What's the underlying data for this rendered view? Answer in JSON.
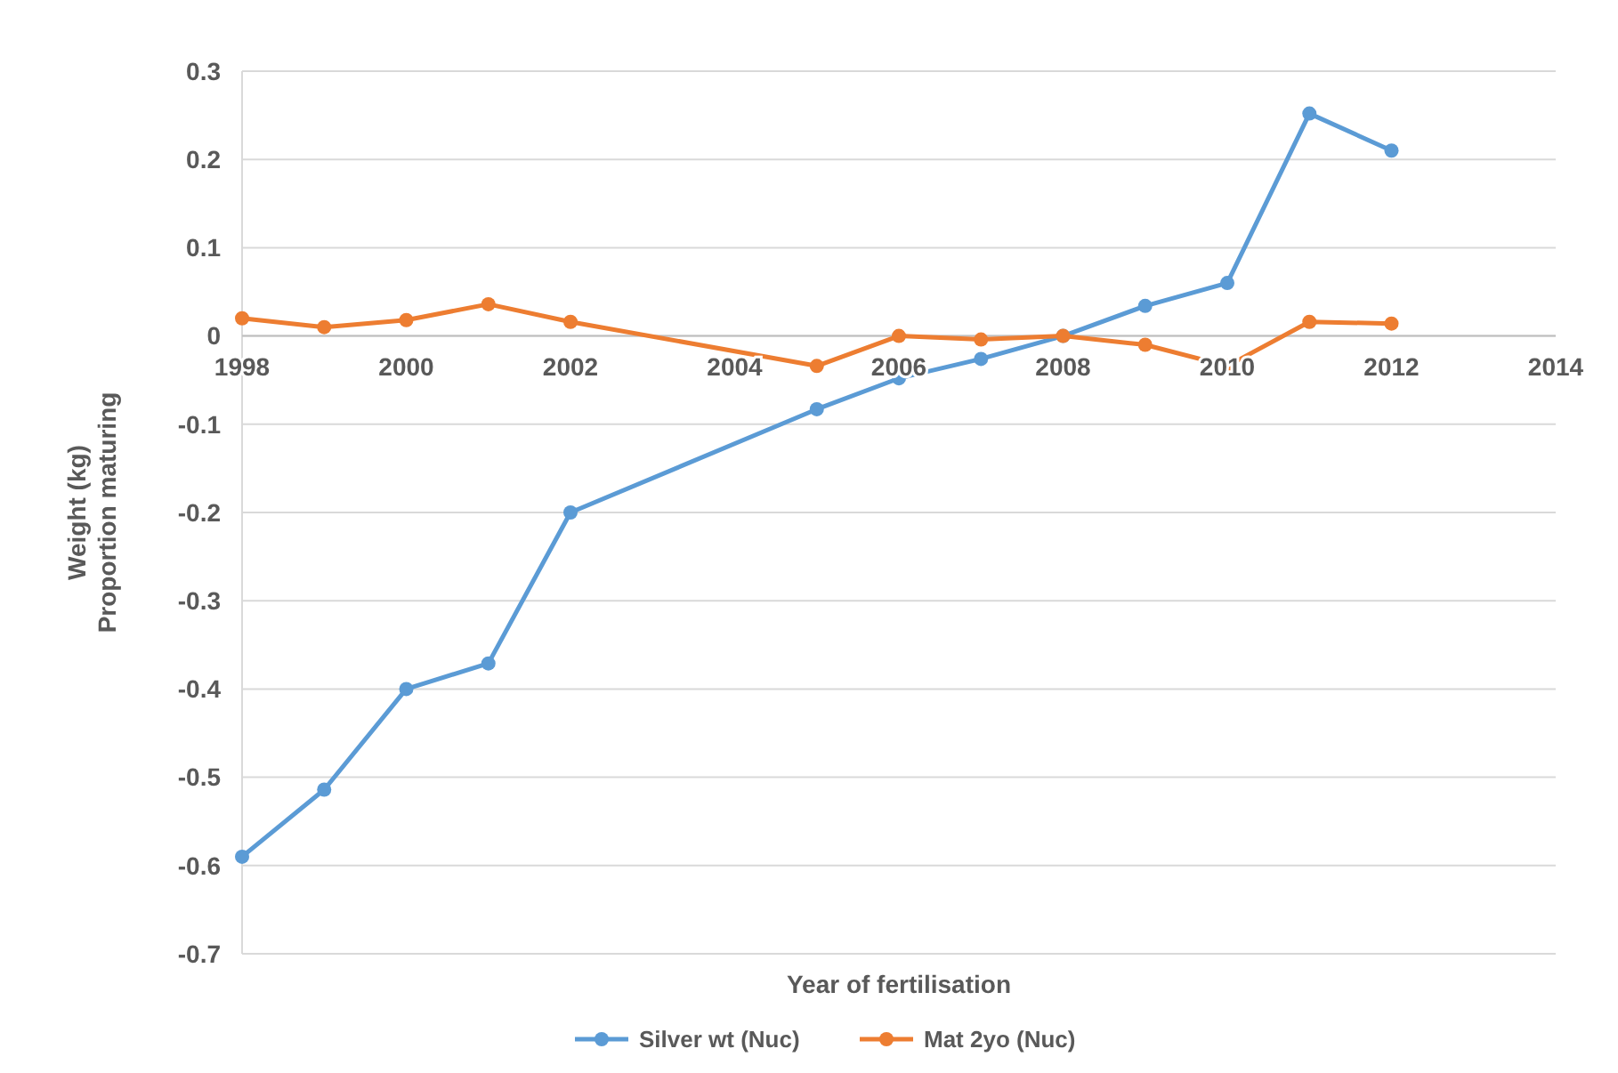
{
  "chart_data": {
    "type": "line",
    "xlabel": "Year of fertilisation",
    "ylabel": "Weight (kg)\nProportion maturing",
    "x": [
      1998,
      1999,
      2000,
      2001,
      2002,
      2005,
      2006,
      2007,
      2008,
      2009,
      2010,
      2011,
      2012
    ],
    "series": [
      {
        "name": "Silver wt (Nuc)",
        "color": "#5b9bd5",
        "values": [
          -0.59,
          -0.514,
          -0.4,
          -0.371,
          -0.2,
          -0.083,
          -0.048,
          -0.026,
          0,
          0.034,
          0.06,
          0.252,
          0.21
        ]
      },
      {
        "name": "Mat 2yo (Nuc)",
        "color": "#ed7d31",
        "values": [
          0.02,
          0.01,
          0.018,
          0.036,
          0.016,
          -0.034,
          0,
          -0.004,
          0,
          -0.01,
          -0.034,
          0.016,
          0.014
        ]
      }
    ],
    "xlim": [
      1998,
      2014
    ],
    "xticks": [
      1998,
      2000,
      2002,
      2004,
      2006,
      2008,
      2010,
      2012,
      2014
    ],
    "ylim": [
      -0.7,
      0.3
    ],
    "yticks": [
      -0.7,
      -0.6,
      -0.5,
      -0.4,
      -0.3,
      -0.2,
      -0.1,
      0,
      0.1,
      0.2,
      0.3
    ],
    "grid": "y",
    "legend": "bottom",
    "marker": "circle",
    "line_style": "solid"
  }
}
